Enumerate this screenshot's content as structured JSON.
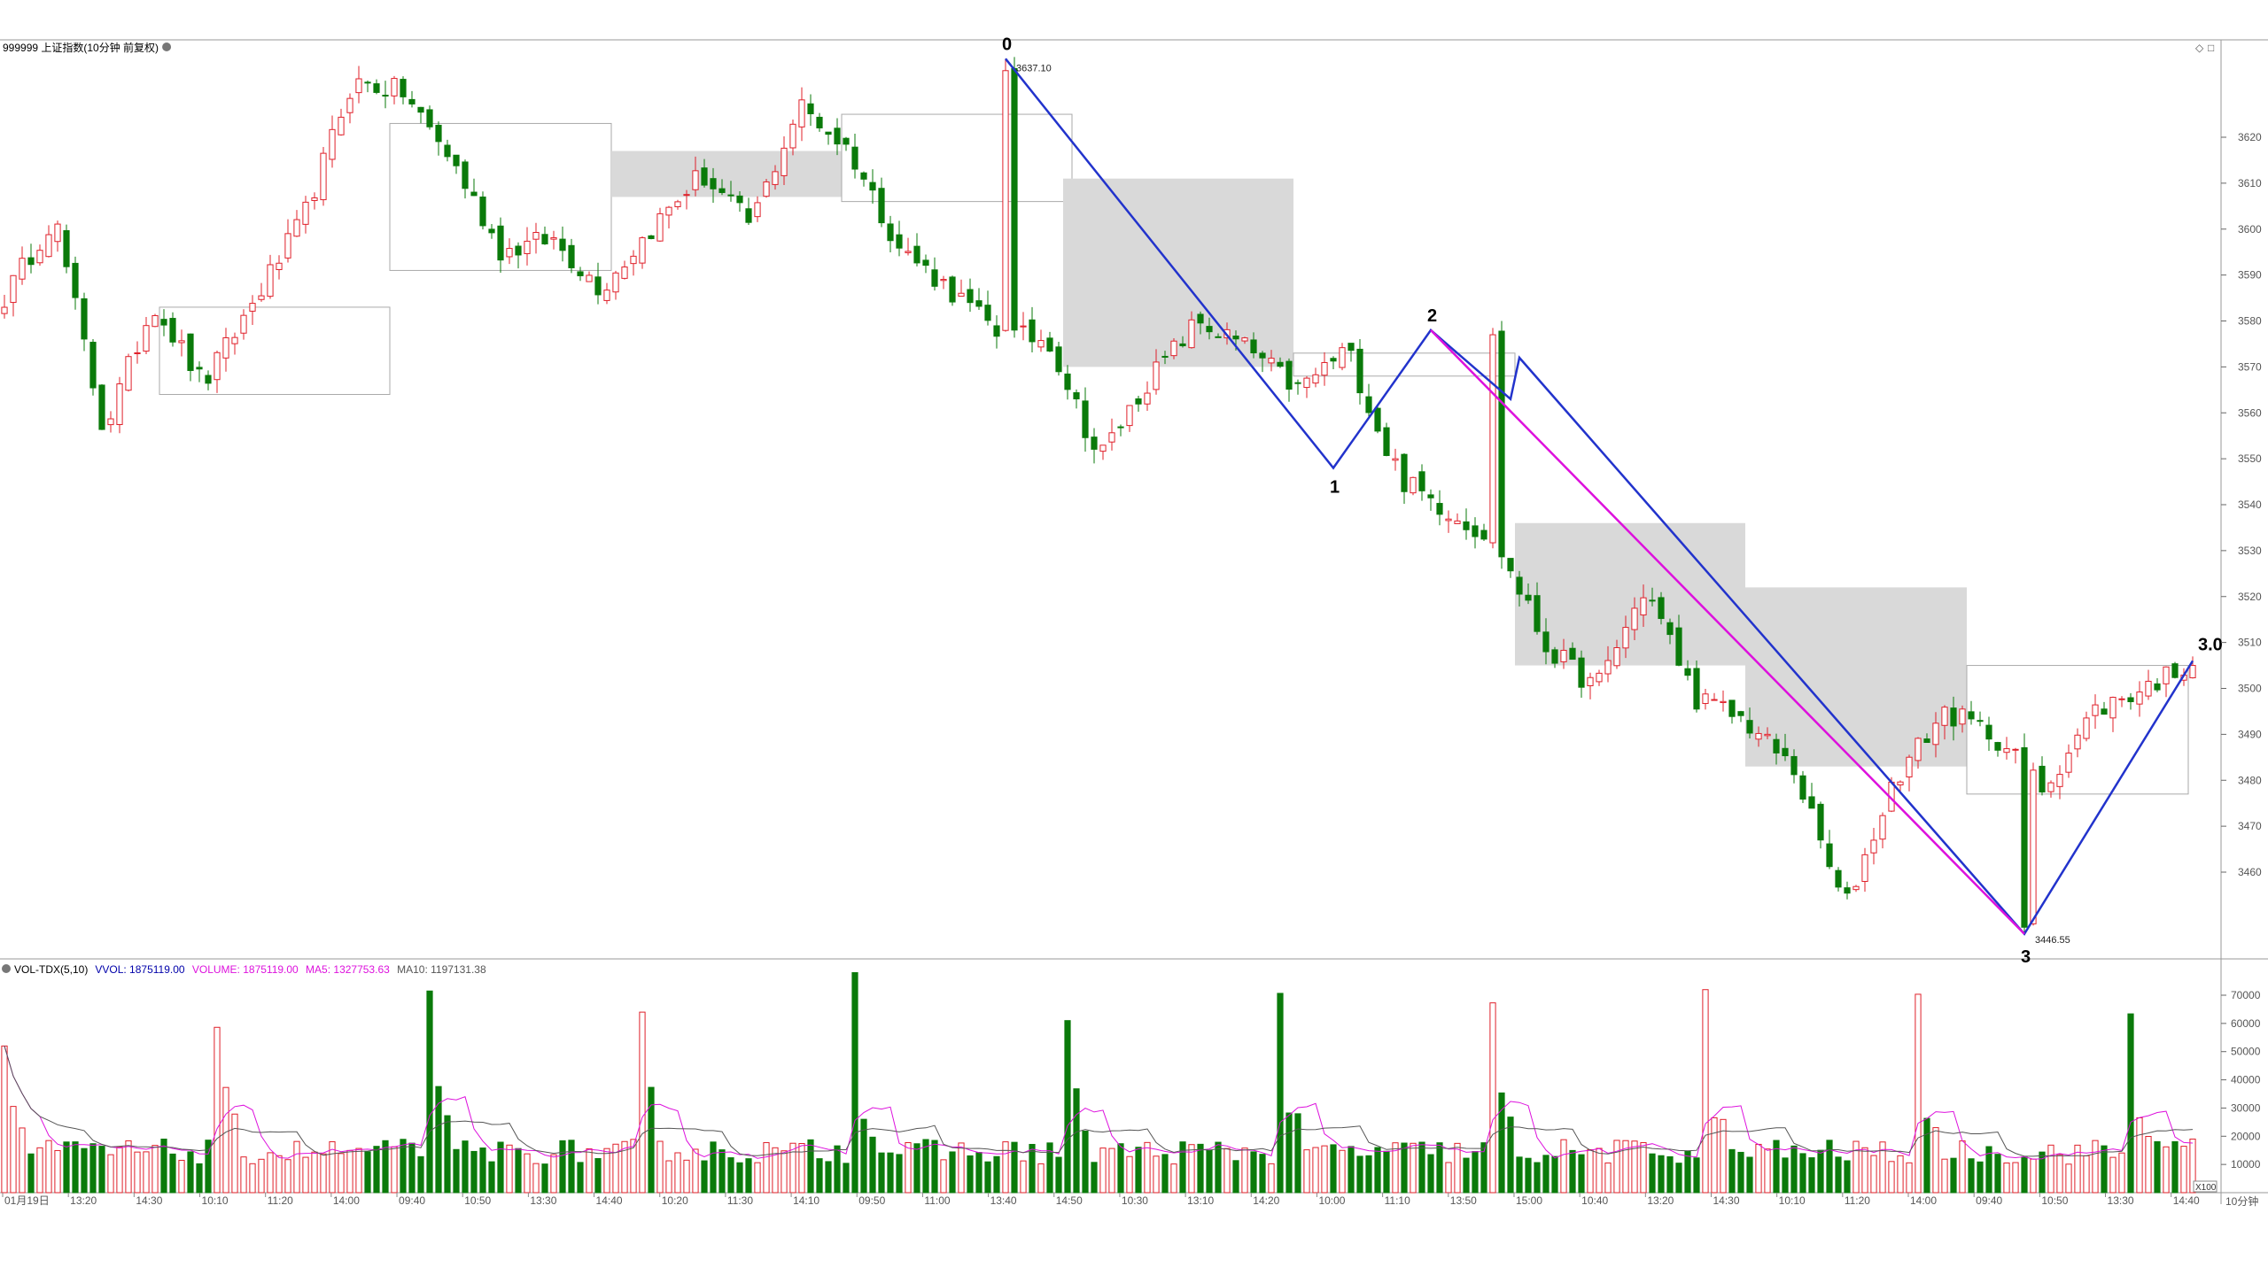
{
  "main_panel": {
    "title": "999999 上证指数(10分钟 前复权)",
    "controls": [
      "◇",
      "□"
    ]
  },
  "volume_panel": {
    "indicator": "VOL-TDX(5,10)",
    "vvol": "VVOL: 1875119.00",
    "volume": "VOLUME: 1875119.00",
    "ma5": "MA5: 1327753.63",
    "ma10": "MA10: 1197131.38",
    "unit": "X100"
  },
  "period_label": "10分钟",
  "colors": {
    "up": "#e0202a",
    "down": "#0a7a0a",
    "blue_line": "#2233cc",
    "magenta_line": "#dd11dd",
    "box_fill": "#d9d9d9",
    "ma5": "#dd11dd",
    "ma10": "#555555"
  },
  "chart_data": {
    "type": "candlestick",
    "price_axis": {
      "ticks": [
        3460,
        3470,
        3480,
        3490,
        3500,
        3510,
        3520,
        3530,
        3540,
        3550,
        3560,
        3570,
        3580,
        3590,
        3600,
        3610,
        3620
      ],
      "range": [
        3444,
        3648
      ]
    },
    "volume_axis": {
      "ticks": [
        10000,
        20000,
        30000,
        40000,
        50000,
        60000,
        70000
      ],
      "range": [
        0,
        80000
      ]
    },
    "time_labels": [
      "01月19日",
      "13:20",
      "14:30",
      "10:10",
      "11:20",
      "14:00",
      "09:40",
      "10:50",
      "13:30",
      "14:40",
      "10:20",
      "11:30",
      "14:10",
      "09:50",
      "11:00",
      "13:40",
      "14:50",
      "10:30",
      "13:10",
      "14:20",
      "10:00",
      "11:10",
      "13:50",
      "15:00",
      "10:40",
      "13:20",
      "14:30",
      "10:10",
      "11:20",
      "14:00",
      "09:40",
      "10:50",
      "13:30",
      "14:40"
    ],
    "wave_labels": [
      {
        "label": "0",
        "price": 3637.1,
        "note": "3637.10"
      },
      {
        "label": "1",
        "price": 3548
      },
      {
        "label": "2",
        "price": 3578
      },
      {
        "label": "3",
        "price": 3446.55,
        "note": "3446.55"
      },
      {
        "label": "3.0",
        "price": 3506
      }
    ],
    "shape_waypoints": [
      3585,
      3603,
      3556,
      3584,
      3566,
      3584,
      3602,
      3632,
      3630,
      3615,
      3595,
      3598,
      3587,
      3600,
      3612,
      3601,
      3627,
      3617,
      3596,
      3587,
      3577,
      3576,
      3550,
      3567,
      3580,
      3574,
      3565,
      3574,
      3546,
      3539,
      3532,
      3509,
      3500,
      3522,
      3498,
      3493,
      3482,
      3452,
      3480,
      3495,
      3490,
      3478,
      3495,
      3500,
      3506
    ]
  }
}
